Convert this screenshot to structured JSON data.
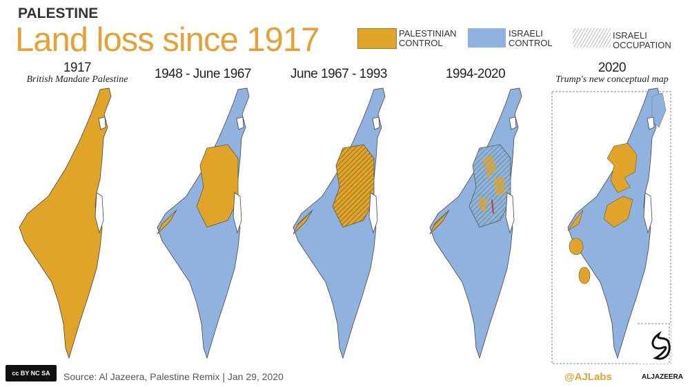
{
  "header": {
    "kicker": "PALESTINE",
    "title": "Land loss since 1917"
  },
  "legend": [
    {
      "label_line1": "PALESTINIAN",
      "label_line2": "CONTROL",
      "color": "#e0a427"
    },
    {
      "label_line1": "ISRAELI",
      "label_line2": "CONTROL",
      "color": "#8fb3de"
    },
    {
      "label_line1": "ISRAELI",
      "label_line2": "OCCUPATION",
      "pattern": "hatched"
    }
  ],
  "panels": [
    {
      "period": "1917",
      "subtitle": "British Mandate Palestine"
    },
    {
      "period": "1948 - June 1967",
      "subtitle": ""
    },
    {
      "period": "June 1967 - 1993",
      "subtitle": ""
    },
    {
      "period": "1994-2020",
      "subtitle": ""
    },
    {
      "period": "2020",
      "subtitle": "Trump's new conceptual map"
    }
  ],
  "colors": {
    "palestinian": "#e0a427",
    "israeli": "#8fb3de",
    "accent": "#e8a033"
  },
  "footer": {
    "source": "Source: Al Jazeera, Palestine Remix  |  Jan 29, 2020",
    "handle": "@AJLabs",
    "brand": "ALJAZEERA",
    "license": "cc BY NC SA"
  }
}
